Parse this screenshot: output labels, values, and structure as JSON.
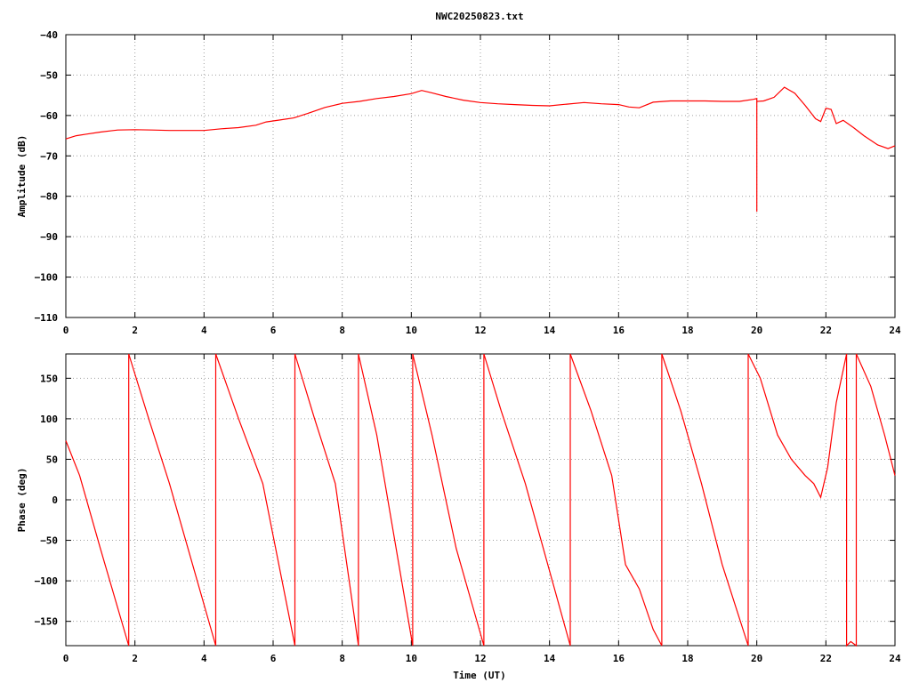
{
  "chart_data": [
    {
      "type": "line",
      "title": "NWC20250823.txt",
      "xlabel": "",
      "ylabel": "Amplitude (dB)",
      "xlim": [
        0,
        24
      ],
      "ylim": [
        -110,
        -40
      ],
      "xticks": [
        "0",
        "2",
        "4",
        "6",
        "8",
        "10",
        "12",
        "14",
        "16",
        "18",
        "20",
        "22",
        "24"
      ],
      "yticks": [
        "-40",
        "-50",
        "-60",
        "-70",
        "-80",
        "-90",
        "-100",
        "-110"
      ],
      "grid": true,
      "line_color": "#ff0000",
      "series": [
        {
          "x": [
            0,
            0.3,
            0.6,
            1.0,
            1.5,
            2.0,
            2.5,
            3.0,
            3.5,
            4.0,
            4.5,
            5.0,
            5.5,
            5.8,
            6.2,
            6.6,
            7.0,
            7.5,
            8.0,
            8.5,
            9.0,
            9.5,
            10.0,
            10.3,
            10.6,
            11.0,
            11.5,
            12.0,
            12.5,
            13.0,
            13.5,
            14.0,
            14.5,
            15.0,
            15.5,
            16.0,
            16.3,
            16.6,
            17.0,
            17.5,
            18.0,
            18.5,
            19.0,
            19.5,
            19.9,
            20.0,
            20.0,
            20.0,
            20.2,
            20.5,
            20.8,
            21.1,
            21.4,
            21.7,
            21.85,
            22.0,
            22.15,
            22.3,
            22.5,
            22.8,
            23.1,
            23.5,
            23.8,
            24.0
          ],
          "y": [
            -65.8,
            -65,
            -64.6,
            -64.1,
            -63.6,
            -63.5,
            -63.6,
            -63.7,
            -63.7,
            -63.7,
            -63.3,
            -63,
            -62.4,
            -61.6,
            -61.1,
            -60.6,
            -59.5,
            -58,
            -57,
            -56.5,
            -55.8,
            -55.3,
            -54.6,
            -53.8,
            -54.4,
            -55.3,
            -56.2,
            -56.8,
            -57.1,
            -57.3,
            -57.5,
            -57.6,
            -57.2,
            -56.8,
            -57.1,
            -57.3,
            -57.9,
            -58.1,
            -56.7,
            -56.4,
            -56.4,
            -56.4,
            -56.5,
            -56.5,
            -56,
            -55.8,
            -83.8,
            -56.5,
            -56.4,
            -55.5,
            -53,
            -54.5,
            -57.5,
            -60.8,
            -61.5,
            -58.2,
            -58.5,
            -62,
            -61.2,
            -63,
            -65,
            -67.3,
            -68.2,
            -67.5
          ]
        }
      ]
    },
    {
      "type": "line",
      "title": "",
      "xlabel": "Time (UT)",
      "ylabel": "Phase (deg)",
      "xlim": [
        0,
        24
      ],
      "ylim": [
        -180,
        180
      ],
      "xticks": [
        "0",
        "2",
        "4",
        "6",
        "8",
        "10",
        "12",
        "14",
        "16",
        "18",
        "20",
        "22",
        "24"
      ],
      "yticks": [
        "150",
        "100",
        "50",
        "0",
        "-50",
        "-100",
        "-150"
      ],
      "grid": true,
      "line_color": "#ff0000",
      "series": [
        {
          "x": [
            0,
            0.4,
            1.0,
            1.82,
            1.82,
            2.4,
            3.0,
            4.34,
            4.34,
            5.0,
            5.7,
            6.63,
            6.63,
            7.2,
            7.8,
            8.47,
            8.47,
            9.0,
            10.04,
            10.04,
            10.6,
            11.3,
            12.1,
            12.1,
            12.6,
            13.3,
            14.6,
            14.6,
            15.2,
            15.8,
            16.2,
            16.6,
            17.0,
            17.25,
            17.25,
            17.8,
            18.4,
            19.0,
            19.75,
            19.75,
            20.1,
            20.6,
            21.0,
            21.4,
            21.65,
            21.85,
            22.05,
            22.3,
            22.6,
            22.6,
            22.72,
            22.88,
            22.88,
            23.3,
            23.7,
            24.0
          ],
          "y": [
            73,
            30,
            -60,
            -180,
            180,
            100,
            20,
            -180,
            180,
            100,
            20,
            -180,
            180,
            100,
            20,
            -180,
            180,
            80,
            -180,
            180,
            80,
            -60,
            -180,
            180,
            110,
            20,
            -180,
            180,
            110,
            30,
            -80,
            -110,
            -160,
            -180,
            180,
            110,
            20,
            -80,
            -180,
            180,
            150,
            80,
            50,
            30,
            20,
            3,
            40,
            120,
            180,
            -180,
            -175,
            -180,
            180,
            140,
            80,
            30
          ]
        }
      ]
    }
  ]
}
